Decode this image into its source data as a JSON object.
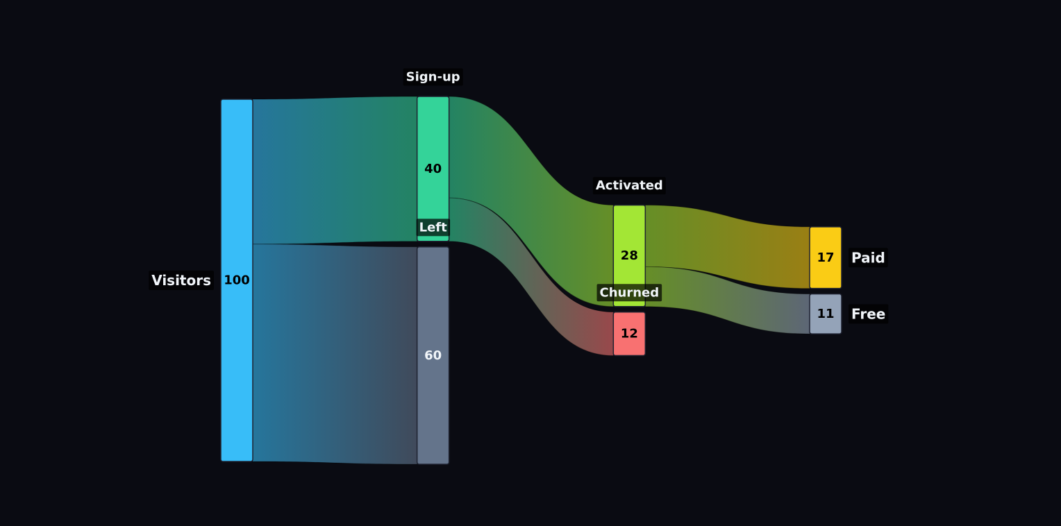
{
  "chart_data": {
    "type": "sankey",
    "nodes": [
      {
        "name": "Visitors",
        "value": 100,
        "color": "#38bdf8"
      },
      {
        "name": "Sign-up",
        "value": 40,
        "color": "#34d399"
      },
      {
        "name": "Left",
        "value": 60,
        "color": "#64748b"
      },
      {
        "name": "Activated",
        "value": 28,
        "color": "#a3e635"
      },
      {
        "name": "Churned",
        "value": 12,
        "color": "#f87171"
      },
      {
        "name": "Paid",
        "value": 17,
        "color": "#facc15"
      },
      {
        "name": "Free",
        "value": 11,
        "color": "#94a3b8"
      }
    ],
    "links": [
      {
        "source": "Visitors",
        "target": "Sign-up",
        "value": 40
      },
      {
        "source": "Visitors",
        "target": "Left",
        "value": 60
      },
      {
        "source": "Sign-up",
        "target": "Activated",
        "value": 28
      },
      {
        "source": "Sign-up",
        "target": "Churned",
        "value": 12
      },
      {
        "source": "Activated",
        "target": "Paid",
        "value": 17
      },
      {
        "source": "Activated",
        "target": "Free",
        "value": 11
      }
    ]
  }
}
